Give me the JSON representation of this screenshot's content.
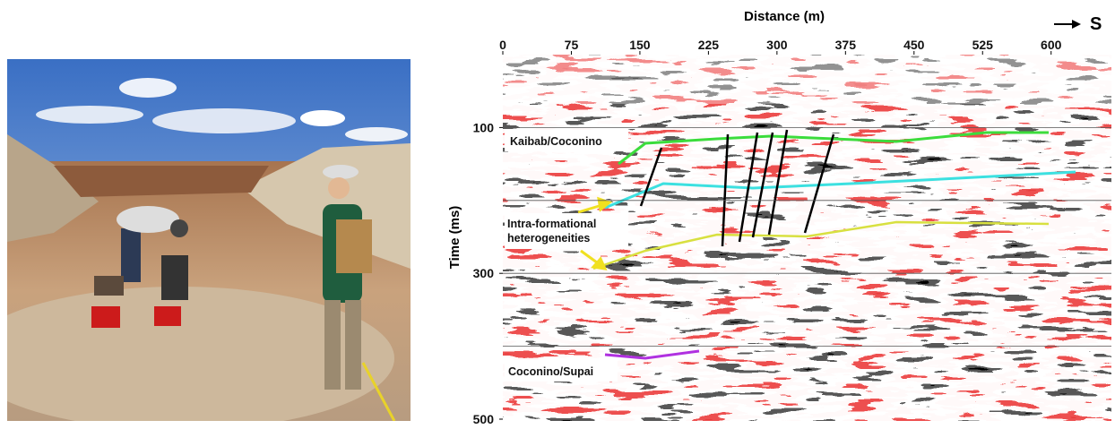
{
  "figure": {
    "seismic": {
      "x_label": "Distance (m)",
      "y_label": "Time (ms)",
      "direction": "S",
      "xlim": [
        0,
        666
      ],
      "xticks": [
        0,
        75,
        150,
        225,
        300,
        375,
        450,
        525,
        600
      ],
      "ylim": [
        0,
        500
      ],
      "yticks": [
        100,
        300,
        500
      ],
      "ygrid": [
        100,
        200,
        300,
        400
      ],
      "annotations": [
        "Kaibab/Coconino",
        "Intra-formational heterogeneities",
        "Coconino/Supai"
      ]
    }
  }
}
